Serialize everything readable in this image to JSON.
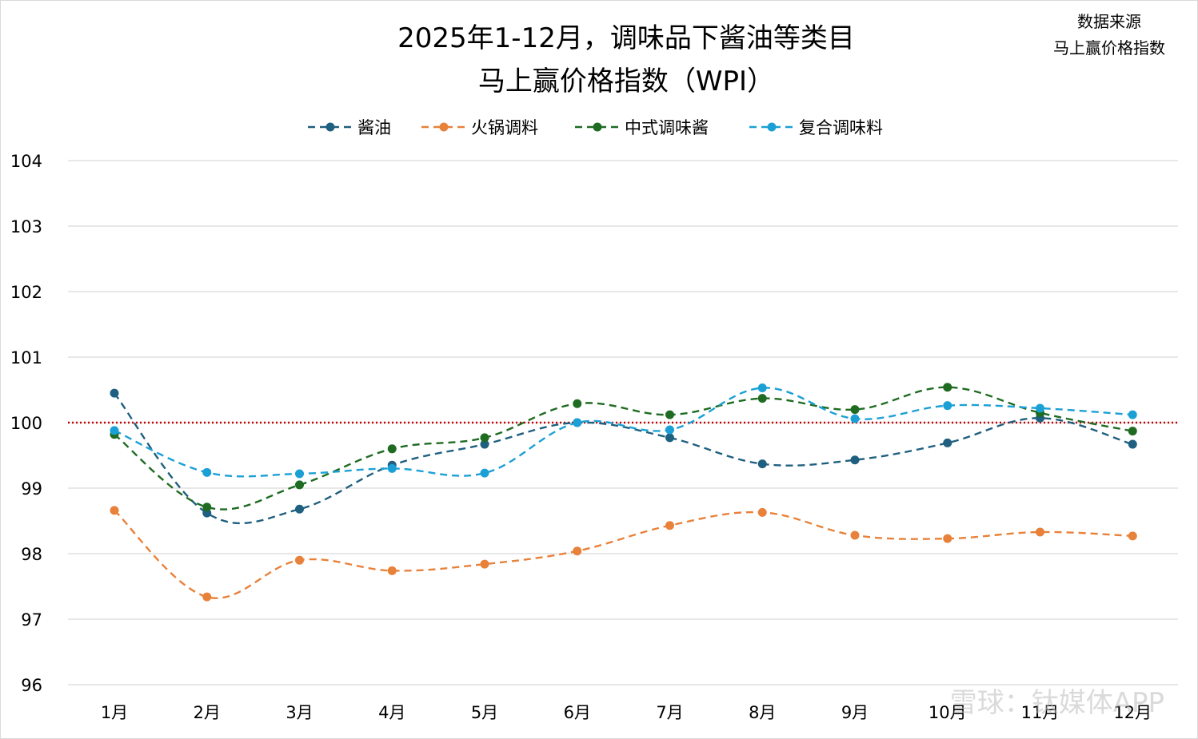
{
  "title_line1": "2025年1-12月，调味品下酱油等类目",
  "title_line2": "马上赢价格指数（WPI）",
  "source": {
    "line1": "数据来源",
    "line2": "马上赢价格指数"
  },
  "watermark": "雪球：钛媒体APP",
  "colors": {
    "series": [
      "#1f5f7f",
      "#e8813a",
      "#1e6b21",
      "#1ba0d6"
    ],
    "reference_line": "#c00000",
    "grid": "#d9d9d9",
    "background": "#ffffff"
  },
  "chart_data": {
    "type": "line",
    "title": "2025年1-12月，调味品下酱油等类目马上赢价格指数（WPI）",
    "categories": [
      "1月",
      "2月",
      "3月",
      "4月",
      "5月",
      "6月",
      "7月",
      "8月",
      "9月",
      "10月",
      "11月",
      "12月"
    ],
    "series": [
      {
        "name": "酱油",
        "values": [
          100.45,
          98.62,
          98.68,
          99.35,
          99.67,
          100.0,
          99.77,
          99.37,
          99.43,
          99.69,
          100.07,
          99.67
        ]
      },
      {
        "name": "火锅调料",
        "values": [
          98.66,
          97.34,
          97.9,
          97.74,
          97.84,
          98.04,
          98.43,
          98.63,
          98.28,
          98.23,
          98.33,
          98.27
        ]
      },
      {
        "name": "中式调味酱",
        "values": [
          99.82,
          98.71,
          99.05,
          99.6,
          99.77,
          100.29,
          100.12,
          100.37,
          100.2,
          100.54,
          100.15,
          99.87
        ]
      },
      {
        "name": "复合调味料",
        "values": [
          99.88,
          99.24,
          99.22,
          99.3,
          99.23,
          100.0,
          99.89,
          100.53,
          100.06,
          100.26,
          100.22,
          100.12
        ]
      }
    ],
    "ylim": [
      96,
      104
    ],
    "yticks": [
      "96",
      "97",
      "98",
      "99",
      "100",
      "101",
      "102",
      "103",
      "104"
    ],
    "reference_line_value": 100,
    "line_style": "dashed smooth with circular markers",
    "grid": "horizontal",
    "legend_position": "top"
  }
}
